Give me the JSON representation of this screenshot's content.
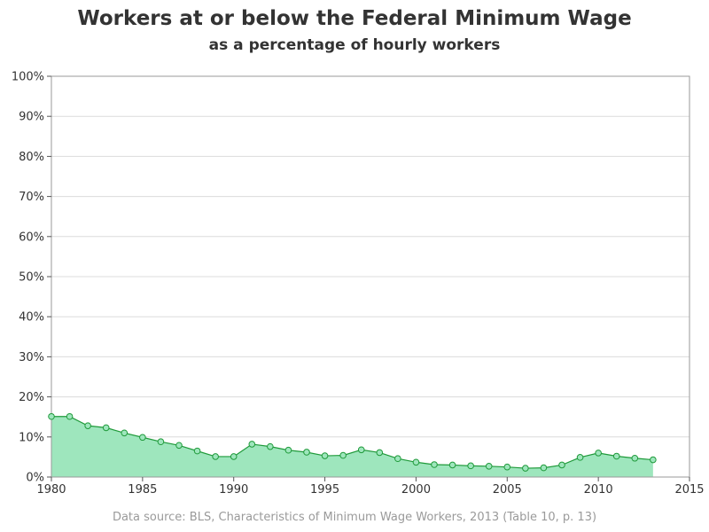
{
  "title": "Workers at or below the Federal Minimum Wage",
  "subtitle": "as a percentage of hourly workers",
  "footnote": "Data source: BLS, Characteristics of Minimum Wage Workers, 2013 (Table 10, p. 13)",
  "colors": {
    "area_fill": "#9ee6bd",
    "line": "#1f9a3a",
    "marker_fill": "#9ee6bd",
    "grid": "#dcdcdc",
    "frame": "#9a9a9a"
  },
  "chart_data": {
    "type": "area",
    "x": [
      1980,
      1981,
      1982,
      1983,
      1984,
      1985,
      1986,
      1987,
      1988,
      1989,
      1990,
      1991,
      1992,
      1993,
      1994,
      1995,
      1996,
      1997,
      1998,
      1999,
      2000,
      2001,
      2002,
      2003,
      2004,
      2005,
      2006,
      2007,
      2008,
      2009,
      2010,
      2011,
      2012,
      2013
    ],
    "series": [
      {
        "values": [
          15.1,
          15.1,
          12.8,
          12.3,
          11.0,
          9.9,
          8.8,
          7.9,
          6.5,
          5.1,
          5.1,
          8.2,
          7.6,
          6.7,
          6.2,
          5.3,
          5.4,
          6.8,
          6.1,
          4.6,
          3.7,
          3.1,
          3.0,
          2.8,
          2.7,
          2.5,
          2.2,
          2.3,
          3.0,
          4.9,
          6.0,
          5.2,
          4.7,
          4.3
        ]
      }
    ],
    "title": "Workers at or below the Federal Minimum Wage",
    "subtitle": "as a percentage of hourly workers",
    "xlabel": "",
    "ylabel": "",
    "xlim": [
      1980,
      2015
    ],
    "ylim": [
      0,
      100
    ],
    "x_ticks": [
      1980,
      1985,
      1990,
      1995,
      2000,
      2005,
      2010,
      2015
    ],
    "x_tick_labels": [
      "1980",
      "1985",
      "1990",
      "1995",
      "2000",
      "2005",
      "2010",
      "2015"
    ],
    "y_ticks": [
      0,
      10,
      20,
      30,
      40,
      50,
      60,
      70,
      80,
      90,
      100
    ],
    "y_tick_labels": [
      "0%",
      "10%",
      "20%",
      "30%",
      "40%",
      "50%",
      "60%",
      "70%",
      "80%",
      "90%",
      "100%"
    ],
    "grid": "horizontal",
    "legend": "none",
    "markers": "open-circle"
  }
}
